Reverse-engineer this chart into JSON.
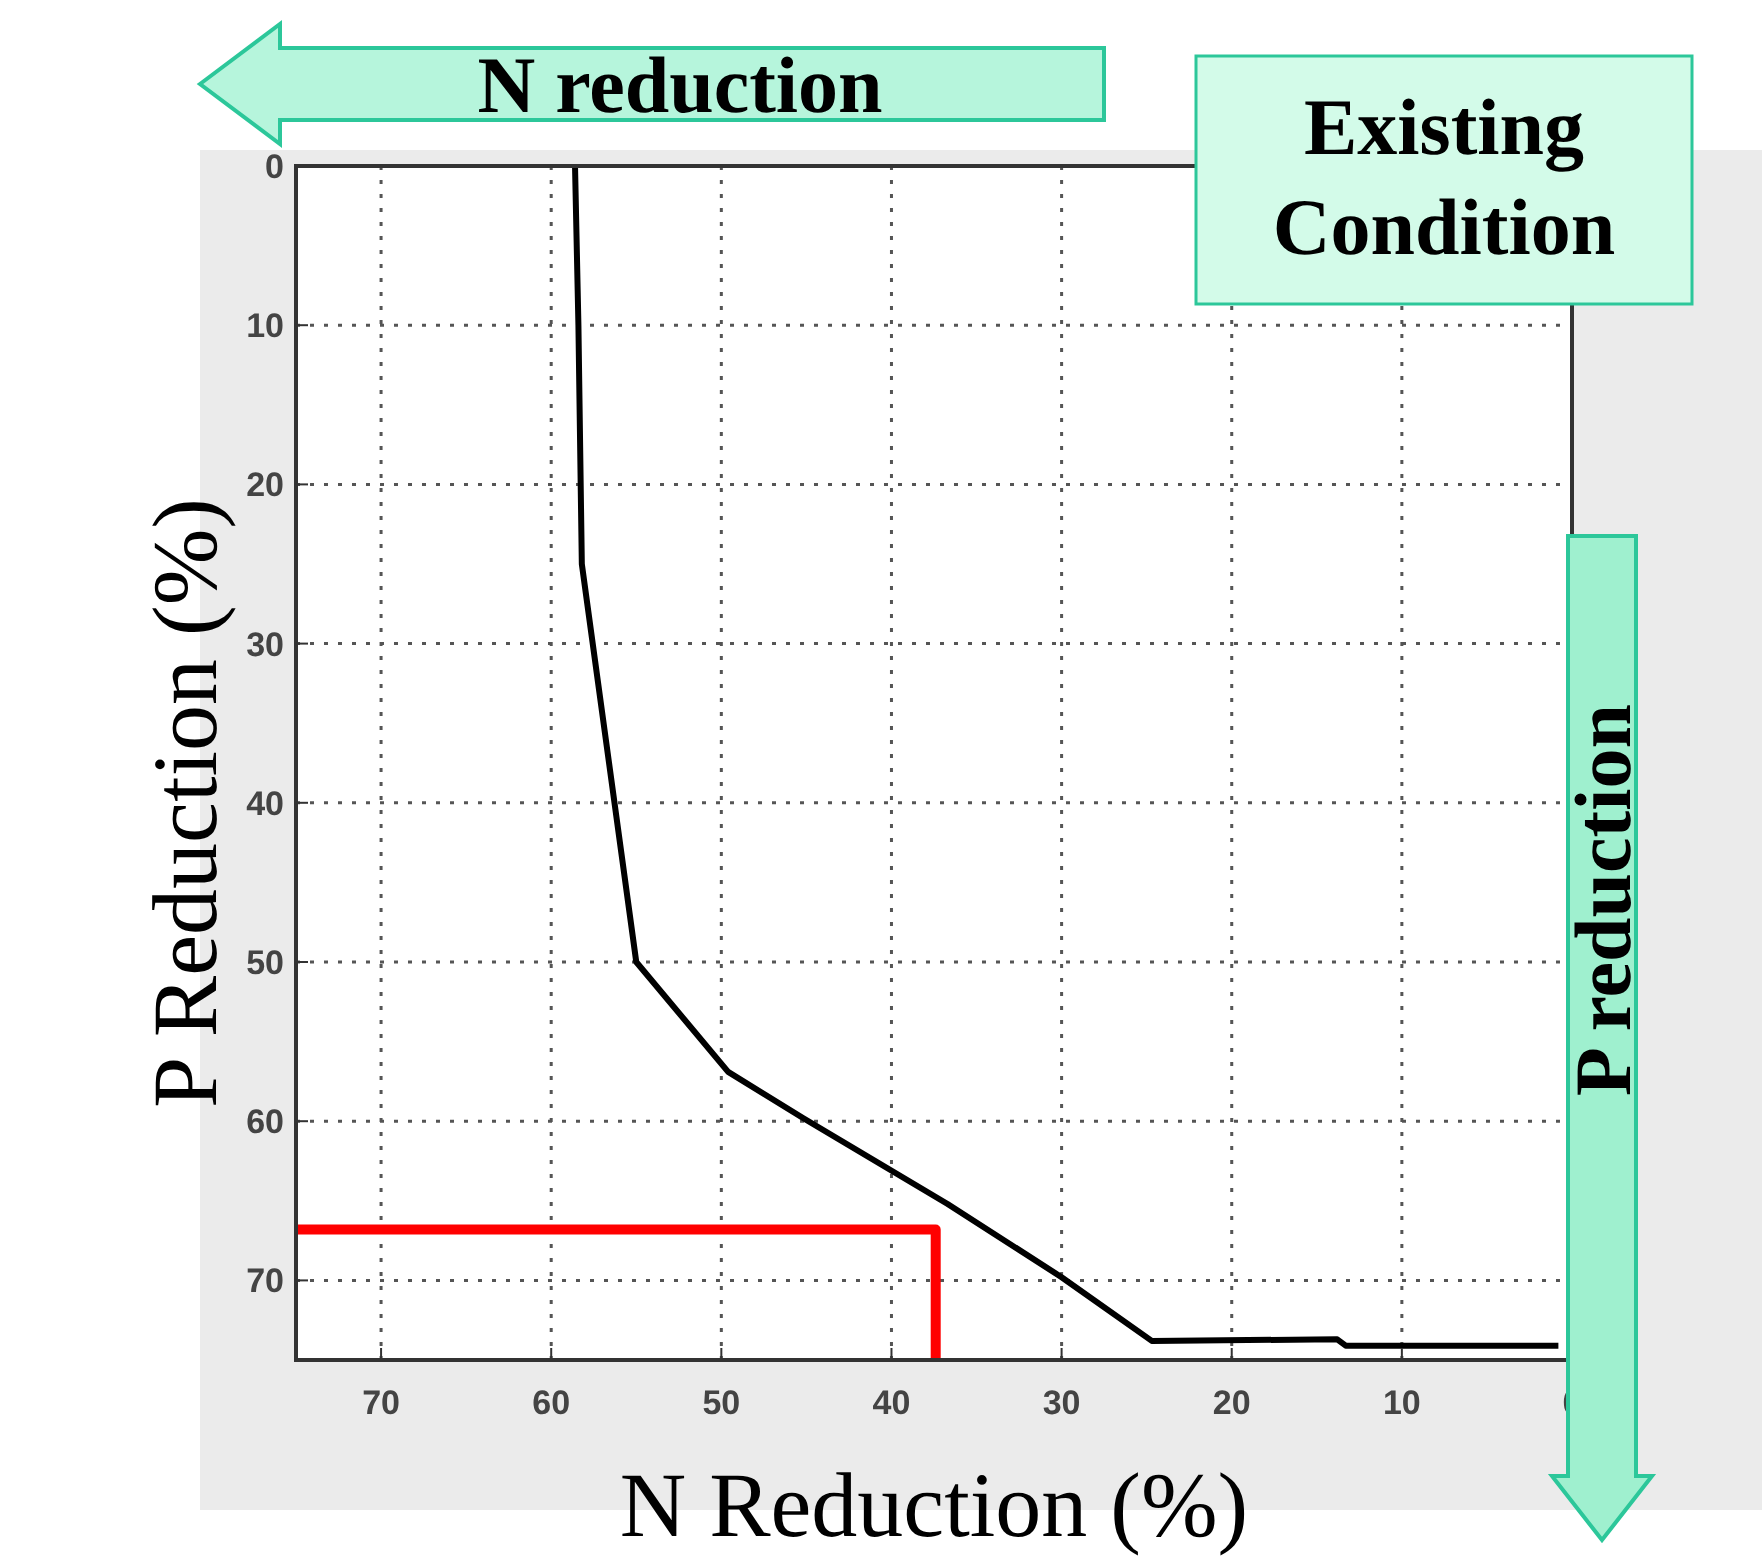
{
  "chart_data": {
    "type": "line",
    "xlabel": "N Reduction (%)",
    "ylabel": "P Reduction (%)",
    "annotations": [
      "N reduction",
      "Existing Condition",
      "P reduction"
    ],
    "xlim": [
      75,
      0
    ],
    "ylim": [
      75,
      0
    ],
    "xticks": [
      70,
      60,
      50,
      40,
      30,
      20,
      10,
      0
    ],
    "yticks": [
      0,
      10,
      20,
      30,
      40,
      50,
      60,
      70
    ],
    "grid": true,
    "line_style": "solid",
    "marker": "none",
    "series": [
      {
        "color": "#000000",
        "x": [
          58.6,
          58.4,
          58.2,
          55.0,
          49.6,
          45.2,
          36.7,
          30.0,
          24.7,
          13.8,
          13.3,
          0.8
        ],
        "values": [
          0,
          10,
          25,
          50,
          56.9,
          59.8,
          65.2,
          69.8,
          73.8,
          73.7,
          74.1,
          74.1
        ]
      },
      {
        "color": "#ff0000",
        "x": [
          75,
          37.4,
          37.4
        ],
        "values": [
          66.8,
          66.8,
          75
        ]
      }
    ]
  }
}
